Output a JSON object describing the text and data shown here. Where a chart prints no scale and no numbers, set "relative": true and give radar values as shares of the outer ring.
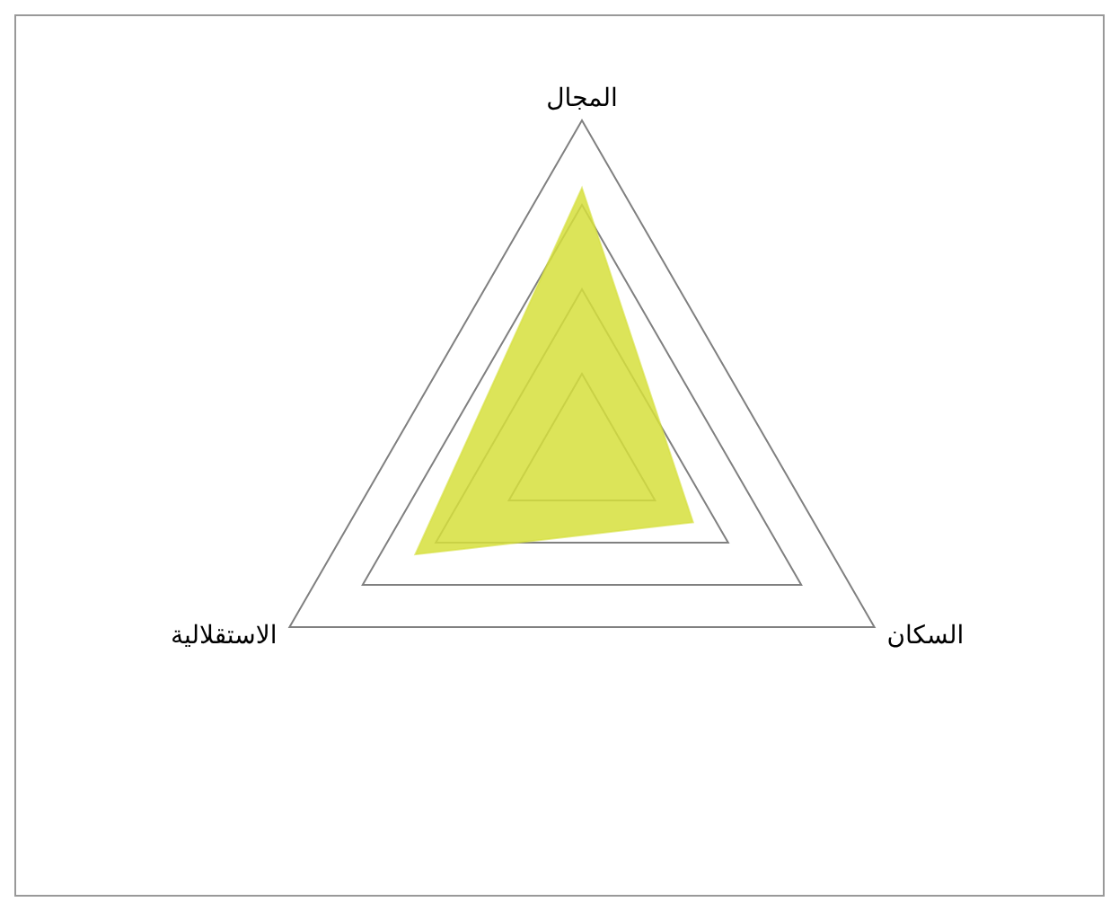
{
  "chart_data": {
    "type": "radar",
    "relative": true,
    "categories": [
      "المجال",
      "السكان",
      "الاستقلالية"
    ],
    "series": [
      {
        "color": "#d6df3c",
        "values": [
          0.8,
          0.38,
          0.57
        ]
      }
    ]
  }
}
